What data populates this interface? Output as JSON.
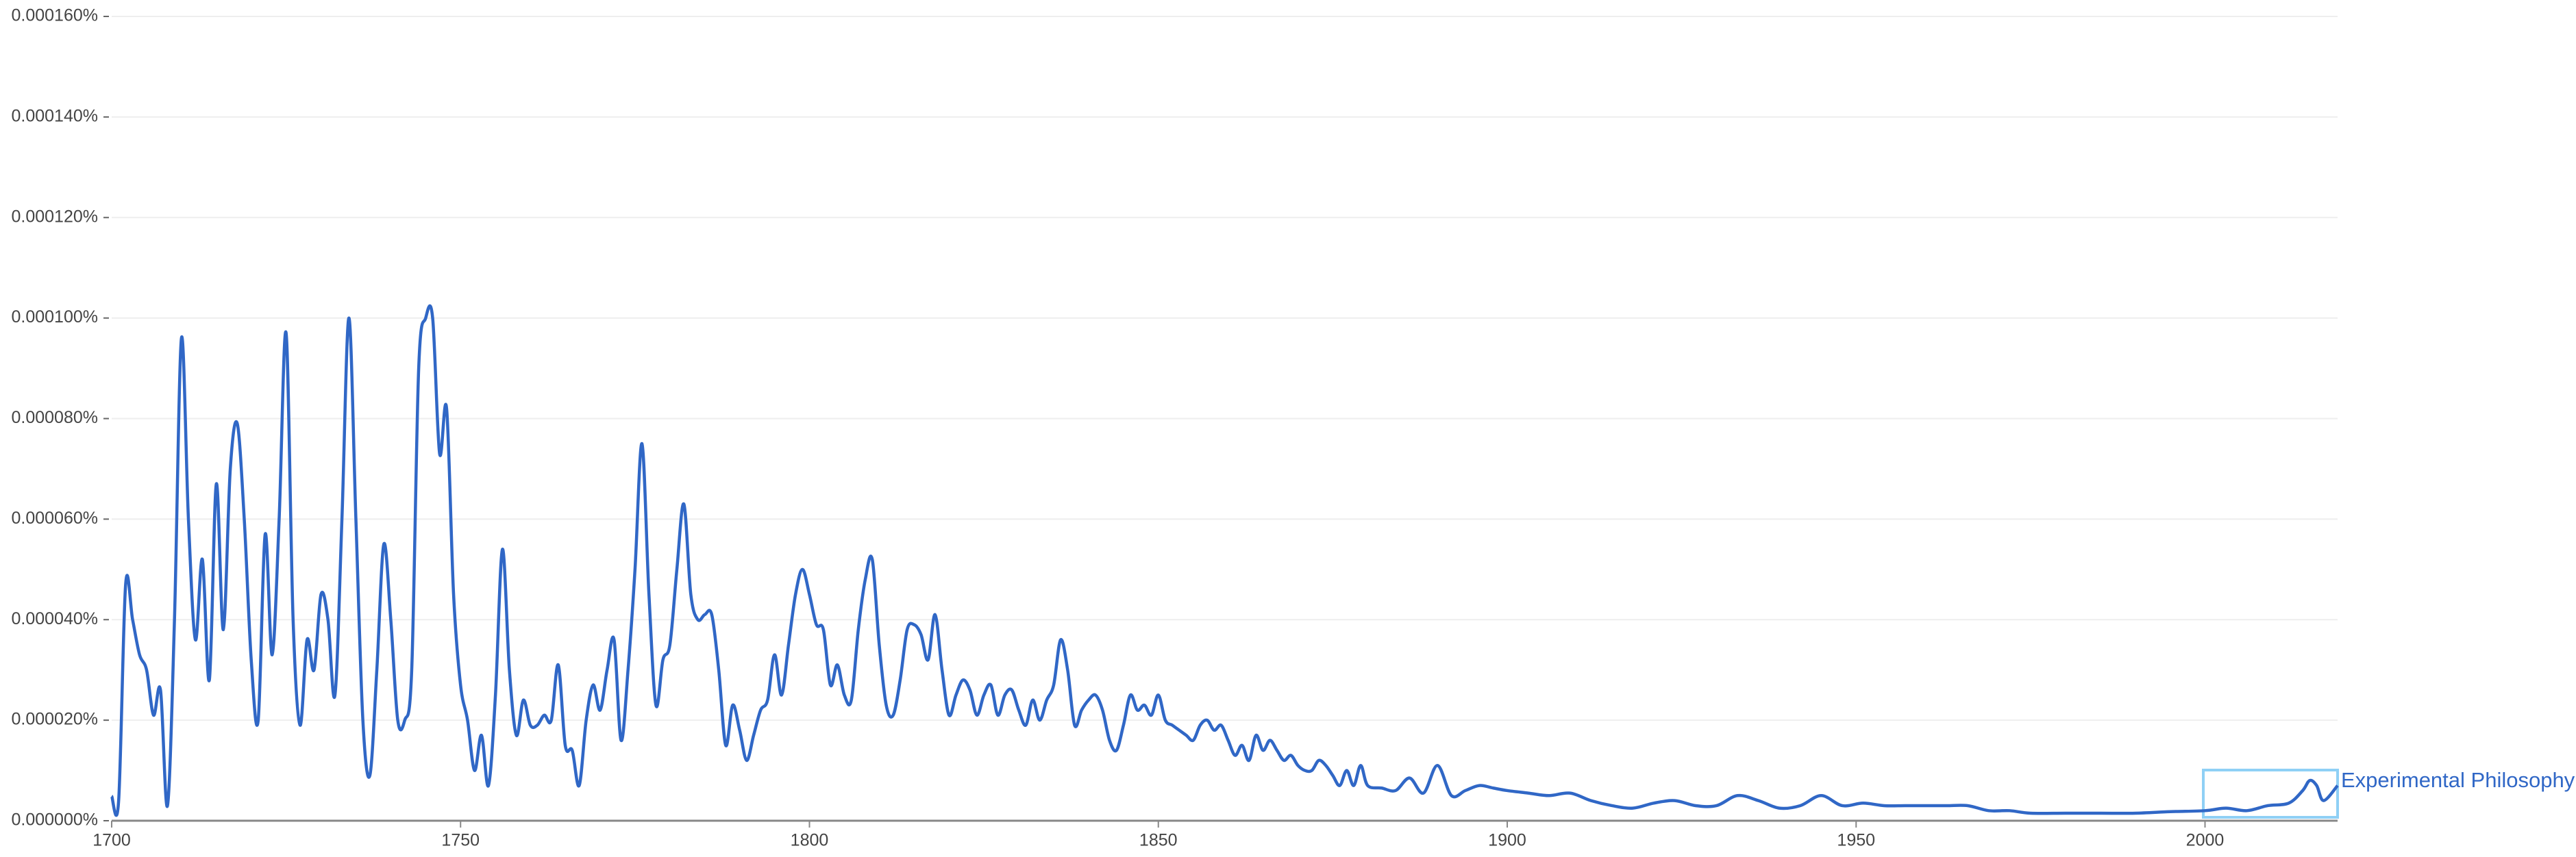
{
  "chart_data": {
    "type": "line",
    "ylim": [
      0,
      0.00016
    ],
    "yticks": [
      {
        "value": 0,
        "label": "0.000000%"
      },
      {
        "value": 2e-05,
        "label": "0.000020%"
      },
      {
        "value": 4e-05,
        "label": "0.000040%"
      },
      {
        "value": 6e-05,
        "label": "0.000060%"
      },
      {
        "value": 8e-05,
        "label": "0.000080%"
      },
      {
        "value": 0.0001,
        "label": "0.000100%"
      },
      {
        "value": 0.00012,
        "label": "0.000120%"
      },
      {
        "value": 0.00014,
        "label": "0.000140%"
      },
      {
        "value": 0.00016,
        "label": "0.000160%"
      }
    ],
    "xlim": [
      1700,
      2019
    ],
    "xticks": [
      1700,
      1750,
      1800,
      1850,
      1900,
      1950,
      2000
    ],
    "grid": true,
    "x": [
      1700,
      1701,
      1702,
      1703,
      1704,
      1705,
      1706,
      1707,
      1708,
      1709,
      1710,
      1711,
      1712,
      1713,
      1714,
      1715,
      1716,
      1717,
      1718,
      1719,
      1720,
      1721,
      1722,
      1723,
      1724,
      1725,
      1726,
      1727,
      1728,
      1729,
      1730,
      1731,
      1732,
      1733,
      1734,
      1735,
      1736,
      1737,
      1738,
      1739,
      1740,
      1741,
      1742,
      1743,
      1744,
      1745,
      1746,
      1747,
      1748,
      1749,
      1750,
      1751,
      1752,
      1753,
      1754,
      1755,
      1756,
      1757,
      1758,
      1759,
      1760,
      1761,
      1762,
      1763,
      1764,
      1765,
      1766,
      1767,
      1768,
      1769,
      1770,
      1771,
      1772,
      1773,
      1774,
      1775,
      1776,
      1777,
      1778,
      1779,
      1780,
      1781,
      1782,
      1783,
      1784,
      1785,
      1786,
      1787,
      1788,
      1789,
      1790,
      1791,
      1792,
      1793,
      1794,
      1795,
      1796,
      1797,
      1798,
      1799,
      1800,
      1801,
      1802,
      1803,
      1804,
      1805,
      1806,
      1807,
      1808,
      1809,
      1810,
      1811,
      1812,
      1813,
      1814,
      1815,
      1816,
      1817,
      1818,
      1819,
      1820,
      1821,
      1822,
      1823,
      1824,
      1825,
      1826,
      1827,
      1828,
      1829,
      1830,
      1831,
      1832,
      1833,
      1834,
      1835,
      1836,
      1837,
      1838,
      1839,
      1840,
      1841,
      1842,
      1843,
      1844,
      1845,
      1846,
      1847,
      1848,
      1849,
      1850,
      1851,
      1852,
      1853,
      1854,
      1855,
      1856,
      1857,
      1858,
      1859,
      1860,
      1861,
      1862,
      1863,
      1864,
      1865,
      1866,
      1867,
      1868,
      1869,
      1870,
      1871,
      1872,
      1873,
      1874,
      1875,
      1876,
      1877,
      1878,
      1879,
      1880,
      1882,
      1884,
      1886,
      1888,
      1890,
      1892,
      1894,
      1896,
      1898,
      1900,
      1903,
      1906,
      1909,
      1912,
      1915,
      1918,
      1921,
      1924,
      1927,
      1930,
      1933,
      1936,
      1939,
      1942,
      1945,
      1948,
      1951,
      1954,
      1957,
      1960,
      1963,
      1966,
      1969,
      1972,
      1975,
      1980,
      1985,
      1990,
      1995,
      2000,
      2003,
      2006,
      2009,
      2012,
      2014,
      2015,
      2016,
      2017,
      2019
    ],
    "series": [
      {
        "name": "Experimental Philosophy",
        "color": "#3067c6",
        "values": [
          4.9e-06,
          4e-06,
          4.7e-05,
          4e-05,
          3.3e-05,
          3e-05,
          2.1e-05,
          2.6e-05,
          3e-06,
          4e-05,
          9.6e-05,
          6e-05,
          3.6e-05,
          5.2e-05,
          2.8e-05,
          6.7e-05,
          3.8e-05,
          7e-05,
          7.9e-05,
          6e-05,
          3.2e-05,
          2e-05,
          5.7e-05,
          3.3e-05,
          6e-05,
          9.7e-05,
          4e-05,
          1.9e-05,
          3.6e-05,
          3e-05,
          4.5e-05,
          4e-05,
          2.5e-05,
          6e-05,
          0.0001,
          6e-05,
          2e-05,
          9e-06,
          3e-05,
          5.5e-05,
          4e-05,
          2e-05,
          2e-05,
          3e-05,
          9e-05,
          0.0001,
          0.0001,
          7.3e-05,
          8.2e-05,
          4.5e-05,
          2.7e-05,
          2e-05,
          1e-05,
          1.7e-05,
          7e-06,
          2.5e-05,
          5.4e-05,
          3e-05,
          1.7e-05,
          2.4e-05,
          1.9e-05,
          1.9e-05,
          2.1e-05,
          2e-05,
          3.1e-05,
          1.5e-05,
          1.4e-05,
          7e-06,
          2e-05,
          2.7e-05,
          2.2e-05,
          3e-05,
          3.6e-05,
          1.6e-05,
          3e-05,
          5e-05,
          7.5e-05,
          4.5e-05,
          2.3e-05,
          3.2e-05,
          3.5e-05,
          5e-05,
          6.3e-05,
          4.5e-05,
          4e-05,
          4.1e-05,
          4.1e-05,
          3e-05,
          1.5e-05,
          2.3e-05,
          1.8e-05,
          1.2e-05,
          1.7e-05,
          2.2e-05,
          2.4e-05,
          3.3e-05,
          2.5e-05,
          3.5e-05,
          4.5e-05,
          5e-05,
          4.5e-05,
          3.9e-05,
          3.8e-05,
          2.7e-05,
          3.1e-05,
          2.5e-05,
          2.4e-05,
          3.8e-05,
          4.8e-05,
          5.2e-05,
          3.5e-05,
          2.3e-05,
          2.1e-05,
          2.8e-05,
          3.8e-05,
          3.9e-05,
          3.7e-05,
          3.2e-05,
          4.1e-05,
          3e-05,
          2.1e-05,
          2.5e-05,
          2.8e-05,
          2.6e-05,
          2.1e-05,
          2.5e-05,
          2.7e-05,
          2.1e-05,
          2.5e-05,
          2.6e-05,
          2.2e-05,
          1.9e-05,
          2.4e-05,
          2e-05,
          2.4e-05,
          2.7e-05,
          3.6e-05,
          3e-05,
          1.9e-05,
          2.2e-05,
          2.4e-05,
          2.5e-05,
          2.2e-05,
          1.6e-05,
          1.4e-05,
          1.9e-05,
          2.5e-05,
          2.2e-05,
          2.3e-05,
          2.1e-05,
          2.5e-05,
          2e-05,
          1.9e-05,
          1.8e-05,
          1.7e-05,
          1.6e-05,
          1.9e-05,
          2e-05,
          1.8e-05,
          1.9e-05,
          1.6e-05,
          1.3e-05,
          1.5e-05,
          1.2e-05,
          1.7e-05,
          1.4e-05,
          1.6e-05,
          1.4e-05,
          1.2e-05,
          1.3e-05,
          1.1e-05,
          1e-05,
          1e-05,
          1.2e-05,
          1.1e-05,
          9e-06,
          7e-06,
          1e-05,
          7e-06,
          1.1e-05,
          7e-06,
          6.5e-06,
          6e-06,
          8.5e-06,
          5.5e-06,
          1.1e-05,
          5e-06,
          6e-06,
          7e-06,
          6.5e-06,
          6e-06,
          5.5e-06,
          5e-06,
          5.5e-06,
          4e-06,
          3e-06,
          2.5e-06,
          3.5e-06,
          4e-06,
          3e-06,
          3e-06,
          5e-06,
          4e-06,
          2.5e-06,
          3e-06,
          5e-06,
          3e-06,
          3.5e-06,
          3e-06,
          3e-06,
          3e-06,
          3e-06,
          3e-06,
          2e-06,
          2e-06,
          1.5e-06,
          1.5e-06,
          1.5e-06,
          1.5e-06,
          1.8e-06,
          2e-06,
          2.5e-06,
          2e-06,
          3e-06,
          3.5e-06,
          6e-06,
          8e-06,
          7e-06,
          4e-06,
          7e-06
        ]
      }
    ]
  }
}
